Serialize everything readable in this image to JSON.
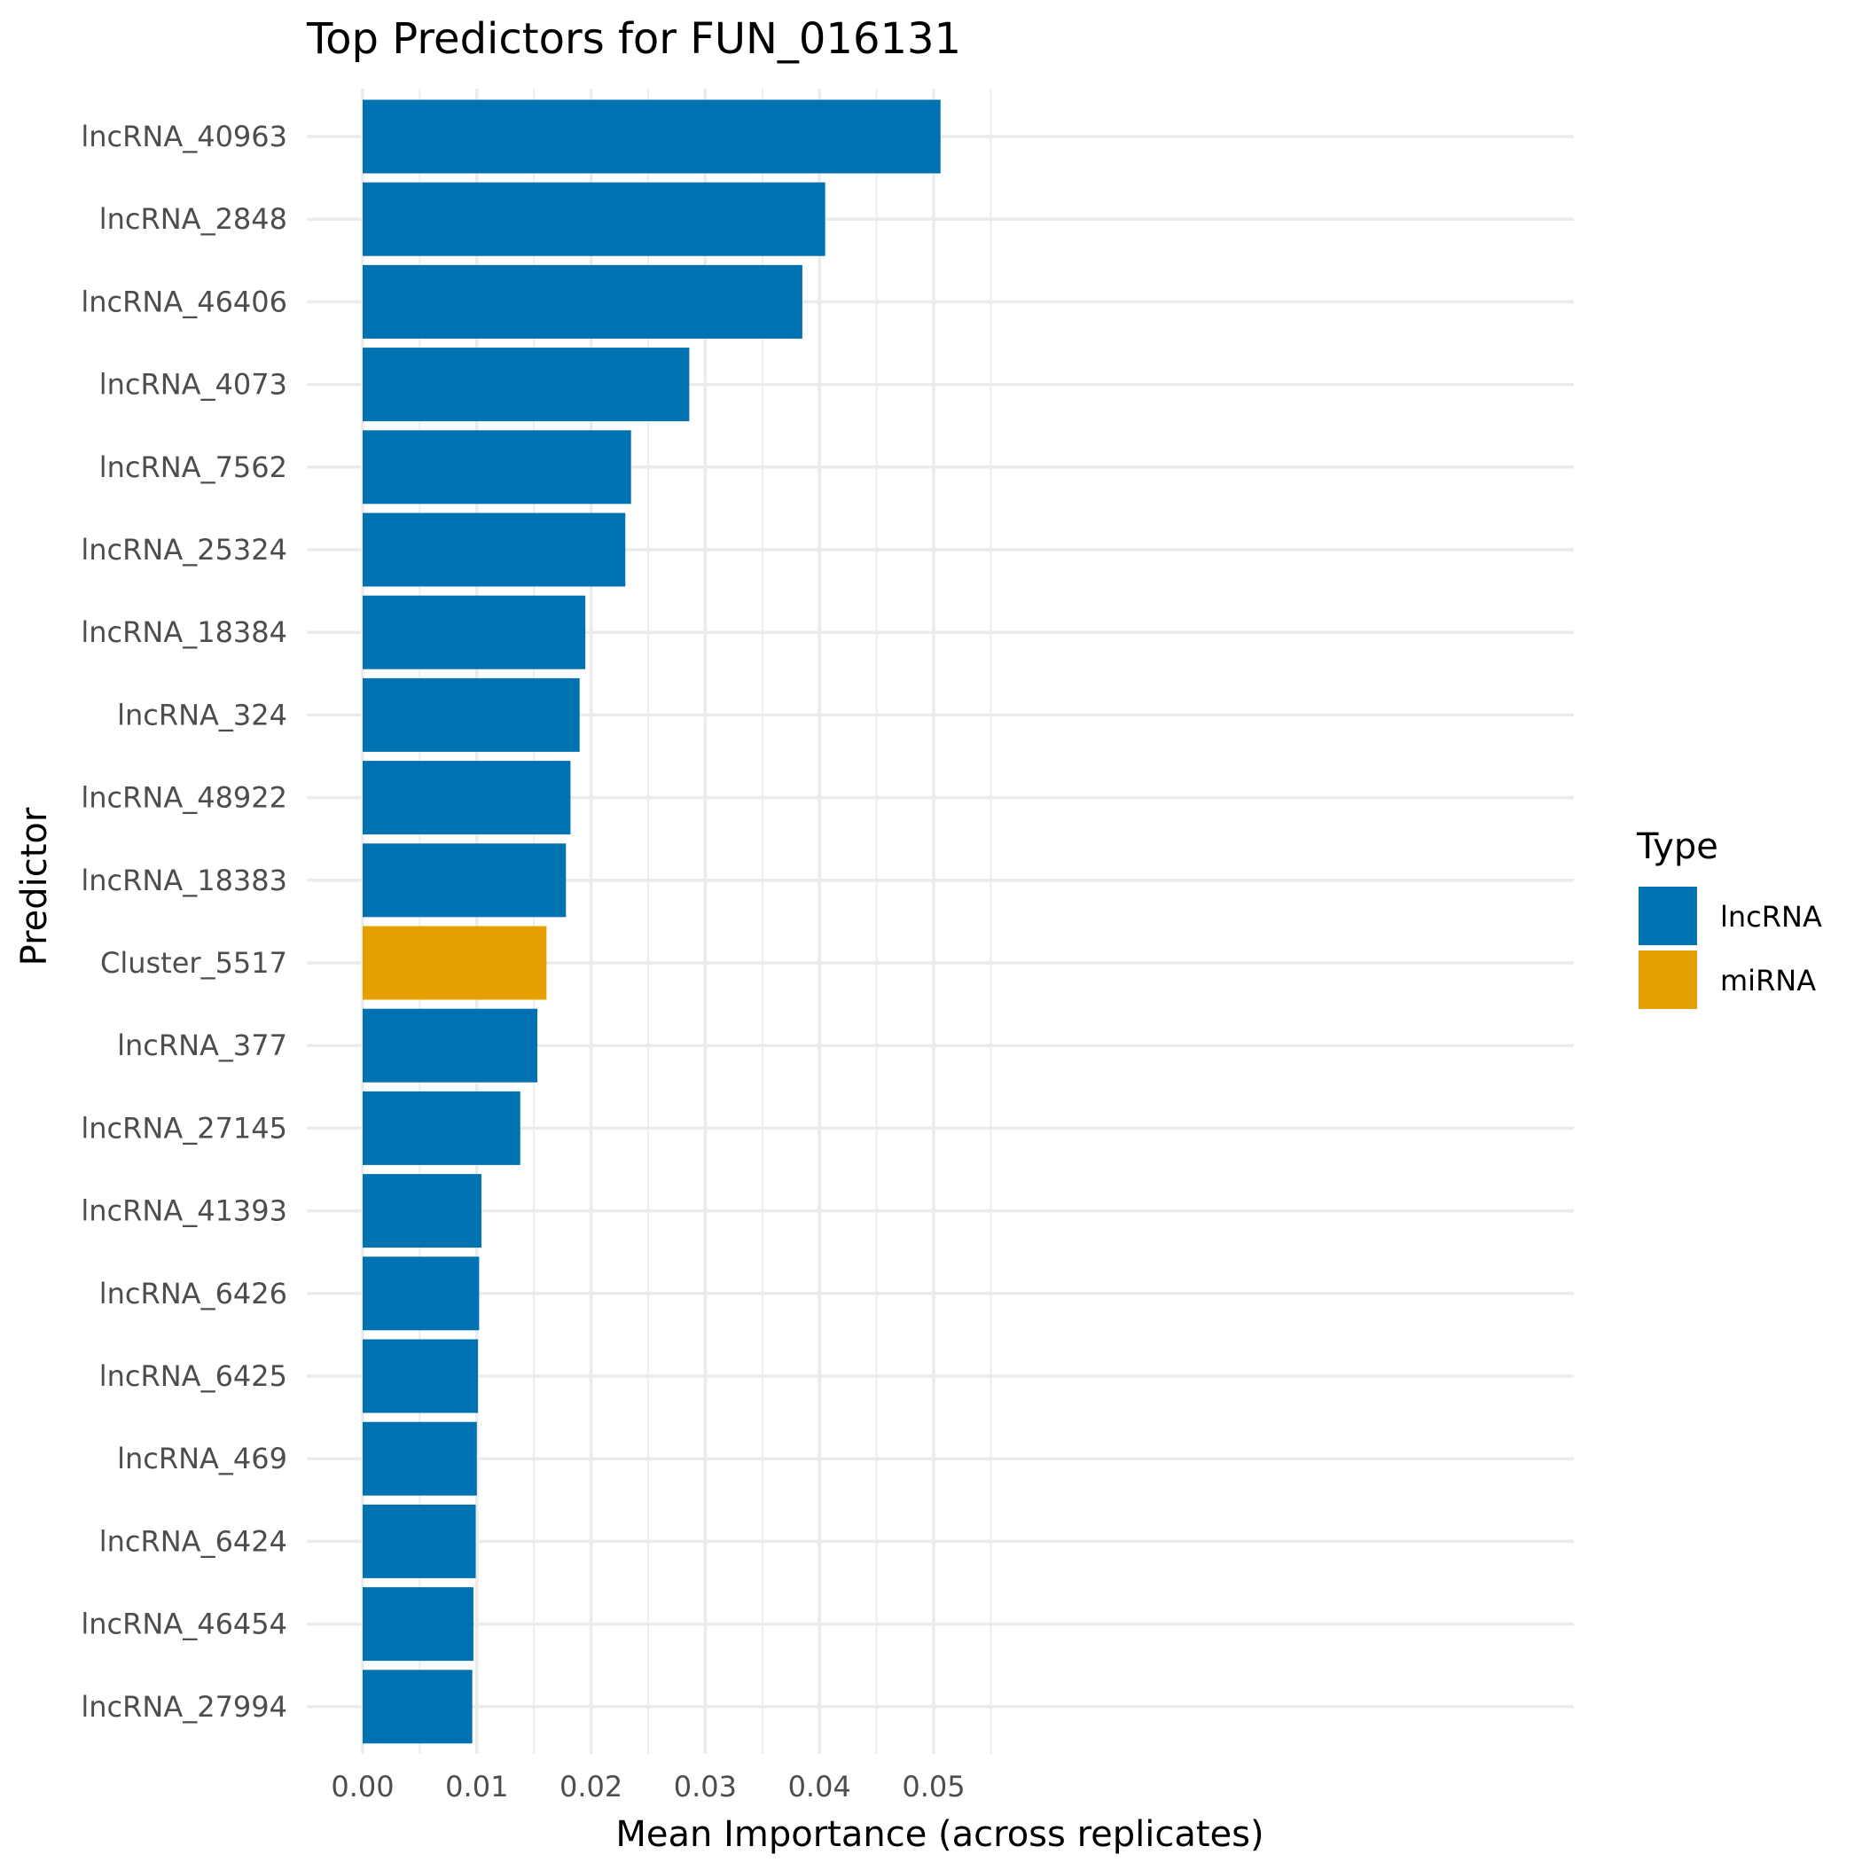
{
  "chart_data": {
    "type": "bar",
    "orientation": "horizontal",
    "title": "Top Predictors for FUN_016131",
    "xlabel": "Mean Importance (across replicates)",
    "ylabel": "Predictor",
    "xlim": [
      0,
      0.053
    ],
    "xticks": [
      0.0,
      0.01,
      0.02,
      0.03,
      0.04,
      0.05
    ],
    "xtick_labels": [
      "0.00",
      "0.01",
      "0.02",
      "0.03",
      "0.04",
      "0.05"
    ],
    "grid": true,
    "legend": {
      "title": "Type",
      "placement": "right",
      "entries": [
        {
          "label": "lncRNA",
          "color": "#0072B2"
        },
        {
          "label": "miRNA",
          "color": "#E69F00"
        }
      ]
    },
    "categories": [
      "lncRNA_40963",
      "lncRNA_2848",
      "lncRNA_46406",
      "lncRNA_4073",
      "lncRNA_7562",
      "lncRNA_25324",
      "lncRNA_18384",
      "lncRNA_324",
      "lncRNA_48922",
      "lncRNA_18383",
      "Cluster_5517",
      "lncRNA_377",
      "lncRNA_27145",
      "lncRNA_41393",
      "lncRNA_6426",
      "lncRNA_6425",
      "lncRNA_469",
      "lncRNA_6424",
      "lncRNA_46454",
      "lncRNA_27994"
    ],
    "values": [
      0.0506,
      0.0405,
      0.0385,
      0.0286,
      0.0235,
      0.023,
      0.0195,
      0.019,
      0.0182,
      0.0178,
      0.0161,
      0.0153,
      0.0138,
      0.0104,
      0.0102,
      0.0101,
      0.01,
      0.0099,
      0.0097,
      0.0096
    ],
    "types": [
      "lncRNA",
      "lncRNA",
      "lncRNA",
      "lncRNA",
      "lncRNA",
      "lncRNA",
      "lncRNA",
      "lncRNA",
      "lncRNA",
      "lncRNA",
      "miRNA",
      "lncRNA",
      "lncRNA",
      "lncRNA",
      "lncRNA",
      "lncRNA",
      "lncRNA",
      "lncRNA",
      "lncRNA",
      "lncRNA"
    ]
  }
}
